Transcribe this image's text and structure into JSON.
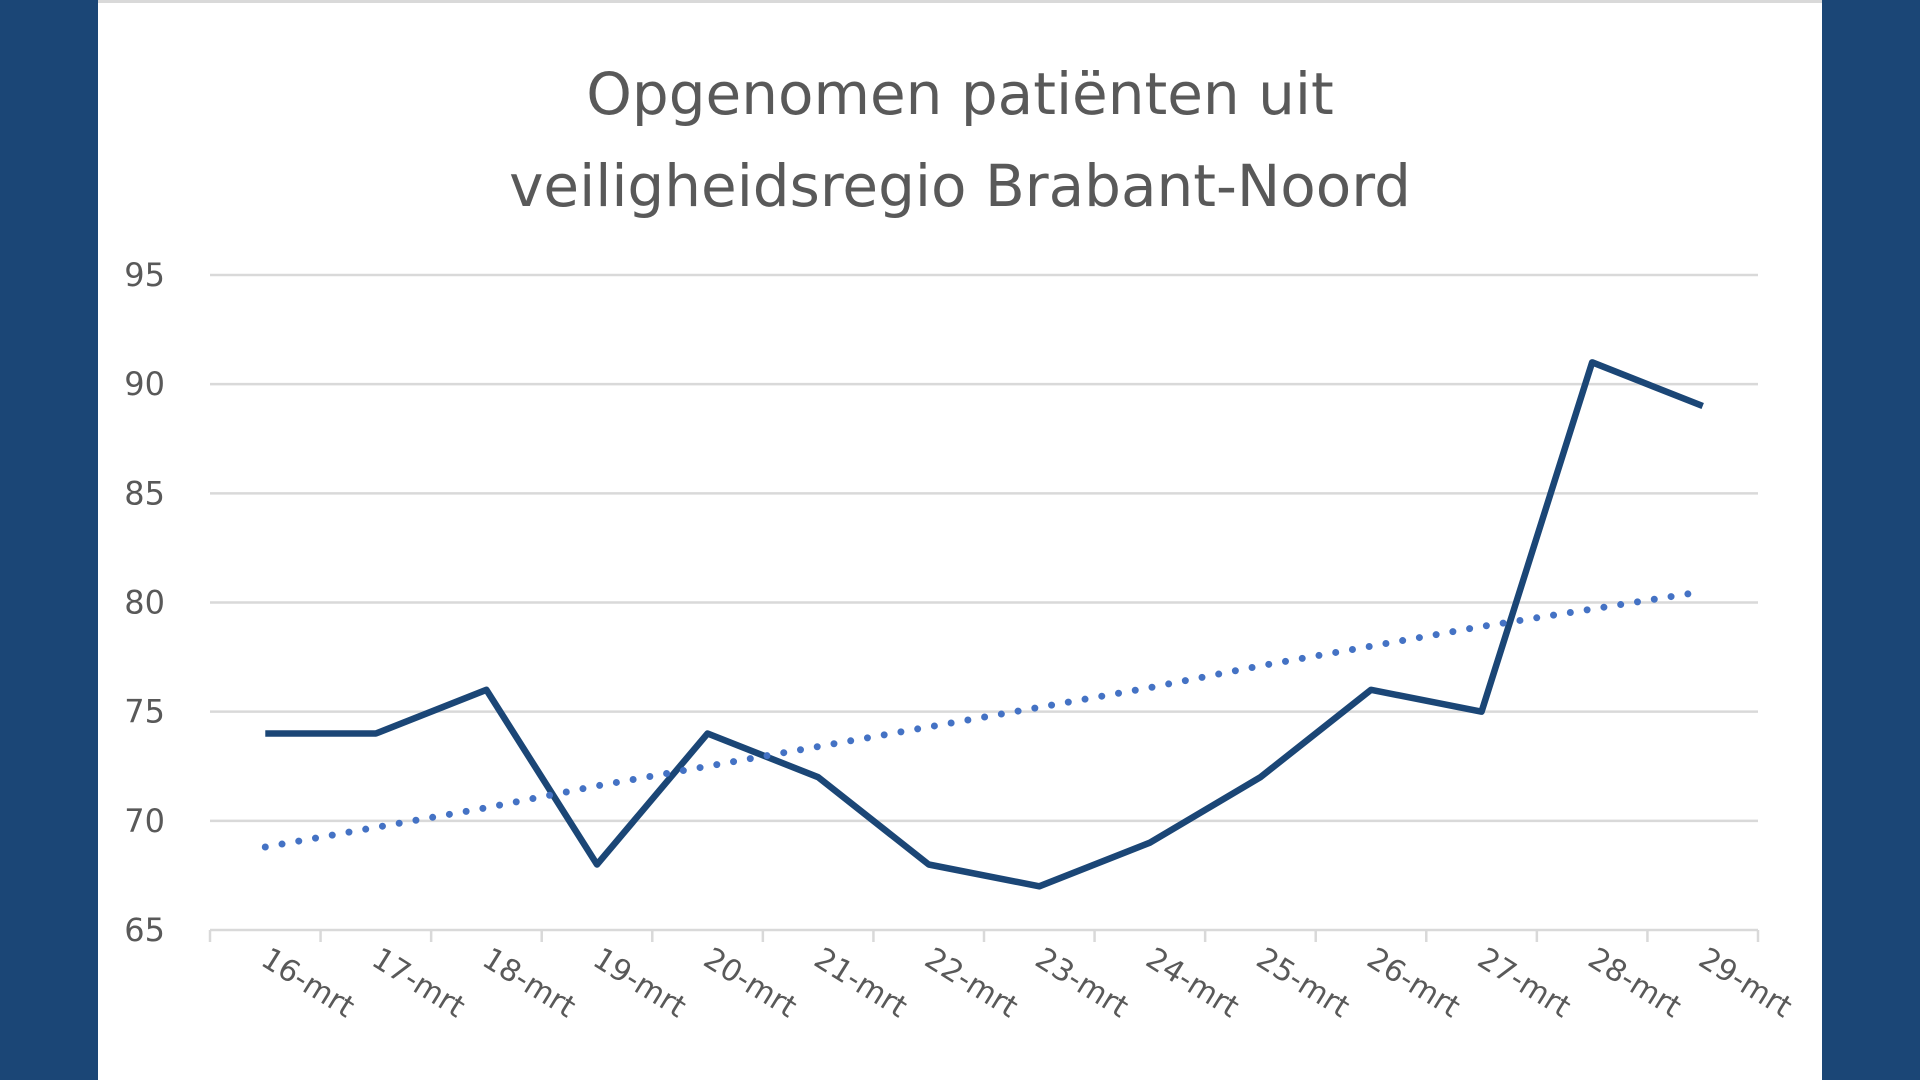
{
  "chart_data": {
    "type": "line",
    "title": "Opgenomen patiënten uit veiligheidsregio Brabant-Noord",
    "title_lines": [
      "Opgenomen patiënten uit",
      "veiligheidsregio Brabant-Noord"
    ],
    "categories": [
      "16-mrt",
      "17-mrt",
      "18-mrt",
      "19-mrt",
      "20-mrt",
      "21-mrt",
      "22-mrt",
      "23-mrt",
      "24-mrt",
      "25-mrt",
      "26-mrt",
      "27-mrt",
      "28-mrt",
      "29-mrt"
    ],
    "series": [
      {
        "values": [
          74,
          74,
          76,
          68,
          74,
          72,
          68,
          67,
          69,
          72,
          76,
          75,
          91,
          89
        ],
        "color": "#1b4676",
        "style": "solid"
      },
      {
        "values": [
          68.8,
          69.7,
          70.6,
          71.6,
          72.5,
          73.4,
          74.3,
          75.2,
          76.1,
          77.1,
          78.0,
          78.9,
          79.7,
          80.5
        ],
        "color": "#4472c4",
        "style": "dotted"
      }
    ],
    "ylim": [
      65,
      95
    ],
    "yticks": [
      65,
      70,
      75,
      80,
      85,
      90,
      95
    ],
    "grid": true,
    "legend": "none",
    "colors": {
      "frame": "#1b4676",
      "background": "#ffffff",
      "gridline": "#d9d9d9",
      "text": "#595959"
    }
  }
}
